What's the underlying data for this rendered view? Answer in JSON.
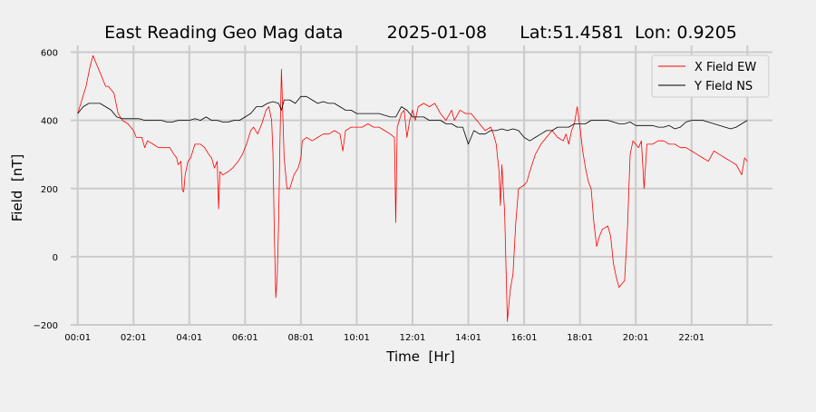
{
  "chart_data": {
    "type": "line",
    "title": "East Reading Geo Mag data        2025-01-08      Lat:51.4581  Lon: 0.9205",
    "xlabel": "Time  [Hr]",
    "ylabel": "Field  [nT]",
    "xlim": [
      -0.25,
      24.9
    ],
    "ylim": [
      -200,
      620
    ],
    "x_ticks": [
      {
        "label": "00:01",
        "value": 0
      },
      {
        "label": "02:01",
        "value": 2
      },
      {
        "label": "04:01",
        "value": 4
      },
      {
        "label": "06:01",
        "value": 6
      },
      {
        "label": "08:01",
        "value": 8
      },
      {
        "label": "10:01",
        "value": 10
      },
      {
        "label": "12:01",
        "value": 12
      },
      {
        "label": "14:01",
        "value": 14
      },
      {
        "label": "16:01",
        "value": 16
      },
      {
        "label": "18:01",
        "value": 18
      },
      {
        "label": "20:01",
        "value": 20
      },
      {
        "label": "22:01",
        "value": 22
      }
    ],
    "x_grid_extra": [
      24
    ],
    "y_ticks": [
      {
        "label": "600",
        "value": 600
      },
      {
        "label": "400",
        "value": 400
      },
      {
        "label": "200",
        "value": 200
      },
      {
        "label": "0",
        "value": 0
      },
      {
        "label": "−200",
        "value": -200
      }
    ],
    "grid": true,
    "legend_position": "top-right",
    "series": [
      {
        "name": "X Field EW",
        "color": "#ff0000",
        "points": [
          [
            0,
            420
          ],
          [
            0.15,
            460
          ],
          [
            0.3,
            500
          ],
          [
            0.45,
            560
          ],
          [
            0.55,
            590
          ],
          [
            0.7,
            560
          ],
          [
            0.85,
            530
          ],
          [
            1.0,
            500
          ],
          [
            1.1,
            500
          ],
          [
            1.3,
            480
          ],
          [
            1.45,
            420
          ],
          [
            1.6,
            400
          ],
          [
            1.8,
            390
          ],
          [
            2.0,
            370
          ],
          [
            2.1,
            350
          ],
          [
            2.3,
            350
          ],
          [
            2.4,
            320
          ],
          [
            2.5,
            340
          ],
          [
            2.7,
            330
          ],
          [
            2.9,
            320
          ],
          [
            3.1,
            320
          ],
          [
            3.3,
            320
          ],
          [
            3.45,
            300
          ],
          [
            3.55,
            290
          ],
          [
            3.6,
            270
          ],
          [
            3.7,
            280
          ],
          [
            3.75,
            195
          ],
          [
            3.8,
            190
          ],
          [
            3.85,
            240
          ],
          [
            3.95,
            280
          ],
          [
            4.05,
            290
          ],
          [
            4.2,
            330
          ],
          [
            4.4,
            330
          ],
          [
            4.55,
            320
          ],
          [
            4.7,
            300
          ],
          [
            4.8,
            290
          ],
          [
            4.9,
            260
          ],
          [
            5.0,
            280
          ],
          [
            5.05,
            140
          ],
          [
            5.1,
            250
          ],
          [
            5.2,
            240
          ],
          [
            5.4,
            250
          ],
          [
            5.55,
            260
          ],
          [
            5.75,
            280
          ],
          [
            5.9,
            300
          ],
          [
            6.05,
            330
          ],
          [
            6.2,
            370
          ],
          [
            6.3,
            380
          ],
          [
            6.45,
            360
          ],
          [
            6.6,
            390
          ],
          [
            6.75,
            430
          ],
          [
            6.85,
            440
          ],
          [
            6.95,
            400
          ],
          [
            7.0,
            300
          ],
          [
            7.05,
            50
          ],
          [
            7.1,
            -120
          ],
          [
            7.15,
            -60
          ],
          [
            7.2,
            100
          ],
          [
            7.25,
            340
          ],
          [
            7.3,
            550
          ],
          [
            7.35,
            420
          ],
          [
            7.4,
            290
          ],
          [
            7.5,
            200
          ],
          [
            7.6,
            200
          ],
          [
            7.75,
            240
          ],
          [
            7.9,
            260
          ],
          [
            8.0,
            290
          ],
          [
            8.05,
            340
          ],
          [
            8.2,
            350
          ],
          [
            8.4,
            340
          ],
          [
            8.6,
            350
          ],
          [
            8.8,
            360
          ],
          [
            9.0,
            360
          ],
          [
            9.2,
            370
          ],
          [
            9.4,
            360
          ],
          [
            9.5,
            310
          ],
          [
            9.6,
            370
          ],
          [
            9.8,
            380
          ],
          [
            10.0,
            380
          ],
          [
            10.2,
            380
          ],
          [
            10.4,
            390
          ],
          [
            10.6,
            380
          ],
          [
            10.8,
            380
          ],
          [
            11.0,
            370
          ],
          [
            11.2,
            360
          ],
          [
            11.35,
            350
          ],
          [
            11.4,
            100
          ],
          [
            11.45,
            380
          ],
          [
            11.6,
            420
          ],
          [
            11.7,
            430
          ],
          [
            11.8,
            350
          ],
          [
            11.9,
            400
          ],
          [
            12.0,
            430
          ],
          [
            12.1,
            400
          ],
          [
            12.2,
            440
          ],
          [
            12.4,
            450
          ],
          [
            12.6,
            440
          ],
          [
            12.8,
            450
          ],
          [
            13.0,
            420
          ],
          [
            13.2,
            400
          ],
          [
            13.4,
            430
          ],
          [
            13.5,
            400
          ],
          [
            13.7,
            430
          ],
          [
            13.9,
            420
          ],
          [
            14.1,
            420
          ],
          [
            14.3,
            400
          ],
          [
            14.4,
            390
          ],
          [
            14.5,
            380
          ],
          [
            14.6,
            370
          ],
          [
            14.8,
            380
          ],
          [
            14.9,
            360
          ],
          [
            15.0,
            330
          ],
          [
            15.1,
            250
          ],
          [
            15.15,
            150
          ],
          [
            15.2,
            270
          ],
          [
            15.3,
            130
          ],
          [
            15.4,
            -190
          ],
          [
            15.5,
            -100
          ],
          [
            15.6,
            -50
          ],
          [
            15.7,
            100
          ],
          [
            15.8,
            200
          ],
          [
            16.0,
            210
          ],
          [
            16.1,
            220
          ],
          [
            16.2,
            250
          ],
          [
            16.4,
            300
          ],
          [
            16.6,
            330
          ],
          [
            16.8,
            350
          ],
          [
            17.0,
            370
          ],
          [
            17.2,
            350
          ],
          [
            17.4,
            340
          ],
          [
            17.5,
            360
          ],
          [
            17.6,
            330
          ],
          [
            17.7,
            370
          ],
          [
            17.8,
            390
          ],
          [
            17.9,
            440
          ],
          [
            18.0,
            380
          ],
          [
            18.1,
            310
          ],
          [
            18.2,
            260
          ],
          [
            18.3,
            220
          ],
          [
            18.4,
            200
          ],
          [
            18.5,
            100
          ],
          [
            18.6,
            30
          ],
          [
            18.7,
            60
          ],
          [
            18.8,
            80
          ],
          [
            19.0,
            90
          ],
          [
            19.1,
            60
          ],
          [
            19.2,
            -20
          ],
          [
            19.3,
            -60
          ],
          [
            19.4,
            -90
          ],
          [
            19.5,
            -80
          ],
          [
            19.6,
            -70
          ],
          [
            19.7,
            80
          ],
          [
            19.8,
            300
          ],
          [
            19.9,
            340
          ],
          [
            20.0,
            330
          ],
          [
            20.1,
            320
          ],
          [
            20.2,
            340
          ],
          [
            20.3,
            200
          ],
          [
            20.4,
            330
          ],
          [
            20.6,
            330
          ],
          [
            20.8,
            340
          ],
          [
            21.0,
            340
          ],
          [
            21.2,
            330
          ],
          [
            21.4,
            330
          ],
          [
            21.6,
            320
          ],
          [
            21.8,
            320
          ],
          [
            22.0,
            310
          ],
          [
            22.2,
            300
          ],
          [
            22.4,
            290
          ],
          [
            22.6,
            280
          ],
          [
            22.8,
            310
          ],
          [
            23.0,
            300
          ],
          [
            23.2,
            290
          ],
          [
            23.4,
            280
          ],
          [
            23.6,
            270
          ],
          [
            23.8,
            240
          ],
          [
            23.9,
            290
          ],
          [
            24.0,
            280
          ]
        ]
      },
      {
        "name": "Y Field NS",
        "color": "#000000",
        "points": [
          [
            0,
            420
          ],
          [
            0.2,
            440
          ],
          [
            0.4,
            450
          ],
          [
            0.6,
            450
          ],
          [
            0.8,
            450
          ],
          [
            1.0,
            440
          ],
          [
            1.2,
            430
          ],
          [
            1.4,
            410
          ],
          [
            1.6,
            405
          ],
          [
            1.8,
            405
          ],
          [
            2.0,
            405
          ],
          [
            2.2,
            405
          ],
          [
            2.4,
            400
          ],
          [
            2.6,
            400
          ],
          [
            2.8,
            400
          ],
          [
            3.0,
            400
          ],
          [
            3.2,
            395
          ],
          [
            3.4,
            395
          ],
          [
            3.6,
            400
          ],
          [
            3.8,
            400
          ],
          [
            4.0,
            400
          ],
          [
            4.2,
            405
          ],
          [
            4.4,
            400
          ],
          [
            4.6,
            410
          ],
          [
            4.8,
            400
          ],
          [
            5.0,
            400
          ],
          [
            5.2,
            395
          ],
          [
            5.4,
            395
          ],
          [
            5.6,
            400
          ],
          [
            5.8,
            400
          ],
          [
            6.0,
            410
          ],
          [
            6.2,
            420
          ],
          [
            6.4,
            440
          ],
          [
            6.6,
            440
          ],
          [
            6.8,
            450
          ],
          [
            7.0,
            455
          ],
          [
            7.2,
            450
          ],
          [
            7.3,
            430
          ],
          [
            7.4,
            460
          ],
          [
            7.6,
            460
          ],
          [
            7.8,
            450
          ],
          [
            8.0,
            470
          ],
          [
            8.2,
            470
          ],
          [
            8.4,
            460
          ],
          [
            8.6,
            450
          ],
          [
            8.8,
            455
          ],
          [
            9.0,
            450
          ],
          [
            9.2,
            450
          ],
          [
            9.4,
            440
          ],
          [
            9.6,
            430
          ],
          [
            9.8,
            430
          ],
          [
            10.0,
            420
          ],
          [
            10.2,
            420
          ],
          [
            10.4,
            420
          ],
          [
            10.6,
            420
          ],
          [
            10.8,
            420
          ],
          [
            11.0,
            415
          ],
          [
            11.2,
            410
          ],
          [
            11.4,
            410
          ],
          [
            11.6,
            440
          ],
          [
            11.8,
            430
          ],
          [
            12.0,
            410
          ],
          [
            12.2,
            410
          ],
          [
            12.4,
            410
          ],
          [
            12.6,
            400
          ],
          [
            12.8,
            400
          ],
          [
            13.0,
            400
          ],
          [
            13.2,
            390
          ],
          [
            13.4,
            390
          ],
          [
            13.6,
            380
          ],
          [
            13.8,
            380
          ],
          [
            14.0,
            330
          ],
          [
            14.2,
            370
          ],
          [
            14.4,
            360
          ],
          [
            14.6,
            360
          ],
          [
            14.8,
            370
          ],
          [
            15.0,
            370
          ],
          [
            15.2,
            375
          ],
          [
            15.4,
            370
          ],
          [
            15.6,
            375
          ],
          [
            15.8,
            370
          ],
          [
            16.0,
            350
          ],
          [
            16.2,
            340
          ],
          [
            16.4,
            350
          ],
          [
            16.6,
            360
          ],
          [
            16.8,
            370
          ],
          [
            17.0,
            370
          ],
          [
            17.2,
            380
          ],
          [
            17.4,
            380
          ],
          [
            17.6,
            380
          ],
          [
            17.8,
            390
          ],
          [
            18.0,
            390
          ],
          [
            18.2,
            390
          ],
          [
            18.4,
            400
          ],
          [
            18.6,
            400
          ],
          [
            18.8,
            400
          ],
          [
            19.0,
            400
          ],
          [
            19.2,
            395
          ],
          [
            19.4,
            390
          ],
          [
            19.6,
            390
          ],
          [
            19.8,
            395
          ],
          [
            20.0,
            385
          ],
          [
            20.2,
            385
          ],
          [
            20.4,
            385
          ],
          [
            20.6,
            385
          ],
          [
            20.8,
            380
          ],
          [
            21.0,
            380
          ],
          [
            21.2,
            385
          ],
          [
            21.4,
            375
          ],
          [
            21.6,
            380
          ],
          [
            21.8,
            395
          ],
          [
            22.0,
            400
          ],
          [
            22.2,
            400
          ],
          [
            22.4,
            400
          ],
          [
            22.6,
            395
          ],
          [
            22.8,
            390
          ],
          [
            23.0,
            385
          ],
          [
            23.2,
            380
          ],
          [
            23.4,
            375
          ],
          [
            23.6,
            380
          ],
          [
            23.8,
            390
          ],
          [
            24.0,
            400
          ]
        ]
      }
    ]
  }
}
